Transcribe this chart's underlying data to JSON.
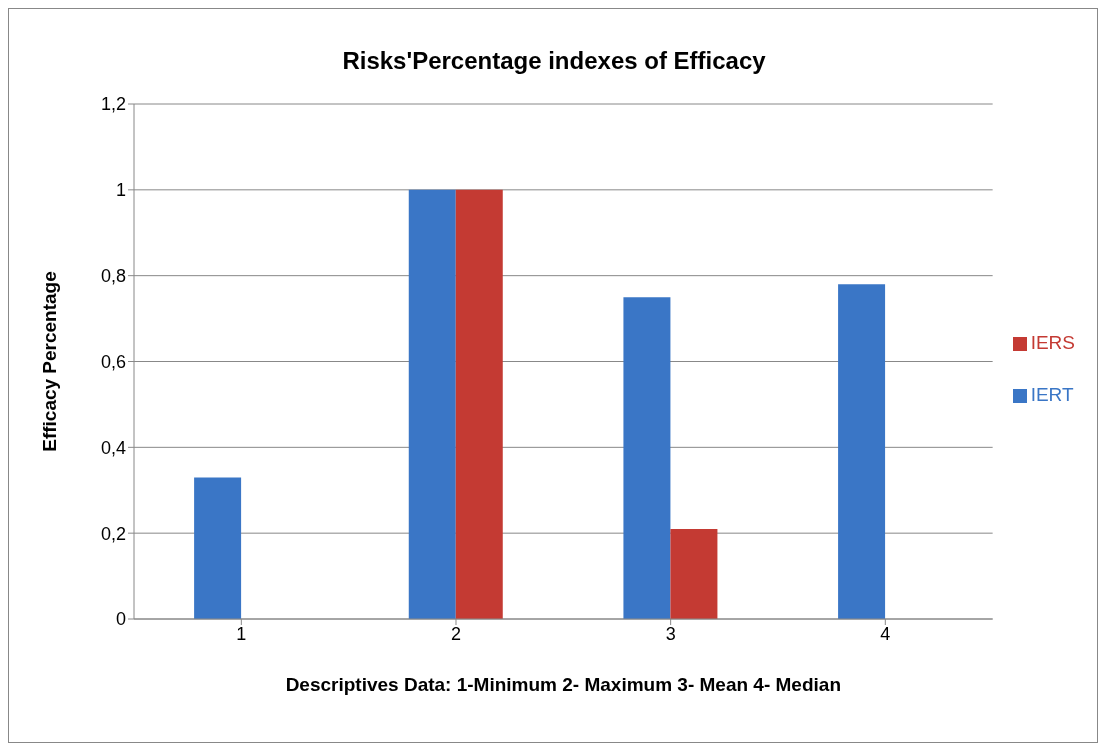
{
  "chart_data": {
    "type": "bar",
    "title": "Risks'Percentage indexes of Efficacy",
    "xlabel": "Descriptives Data: 1-Minimum 2- Maximum 3- Mean 4- Median",
    "ylabel": "Efficacy  Percentage",
    "categories": [
      "1",
      "2",
      "3",
      "4"
    ],
    "series": [
      {
        "name": "IERT",
        "color": "#3a76c6",
        "values": [
          0.33,
          1,
          0.75,
          0.78
        ]
      },
      {
        "name": "IERS",
        "color": "#c43a33",
        "values": [
          0,
          1,
          0.21,
          0
        ]
      }
    ],
    "ylim": [
      0,
      1.2
    ],
    "yticks": [
      0,
      {
        "value": 0.2,
        "label": "0,2"
      },
      {
        "value": 0.4,
        "label": "0,4"
      },
      {
        "value": 0.6,
        "label": "0,6"
      },
      {
        "value": 0.8,
        "label": "0,8"
      },
      1,
      {
        "value": 1.2,
        "label": "1,2"
      }
    ],
    "grid": "y",
    "legend": "right"
  }
}
